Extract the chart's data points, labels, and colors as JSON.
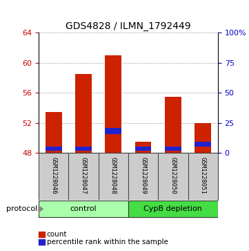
{
  "title": "GDS4828 / ILMN_1792449",
  "samples": [
    "GSM1228046",
    "GSM1228047",
    "GSM1228048",
    "GSM1228049",
    "GSM1228050",
    "GSM1228051"
  ],
  "red_tops": [
    53.5,
    58.5,
    61.0,
    49.5,
    55.5,
    52.0
  ],
  "blue_bottoms": [
    48.3,
    48.3,
    50.5,
    48.3,
    48.3,
    48.9
  ],
  "blue_tops": [
    48.9,
    48.9,
    51.3,
    48.9,
    48.9,
    49.5
  ],
  "base": 48.0,
  "ylim_left": [
    48,
    64
  ],
  "ylim_right": [
    0,
    100
  ],
  "yticks_left": [
    48,
    52,
    56,
    60,
    64
  ],
  "yticks_right": [
    0,
    25,
    50,
    75,
    100
  ],
  "ytick_labels_right": [
    "0",
    "25",
    "50",
    "75",
    "100%"
  ],
  "groups": [
    {
      "label": "control",
      "span": [
        0,
        3
      ],
      "color": "#aaffaa"
    },
    {
      "label": "CypB depletion",
      "span": [
        3,
        6
      ],
      "color": "#44dd44"
    }
  ],
  "protocol_label": "protocol",
  "bar_width": 0.55,
  "red_color": "#cc2200",
  "blue_color": "#2222cc",
  "left_tick_color": "#cc0000",
  "right_tick_color": "#0000cc",
  "background_plot": "#ffffff",
  "background_sample": "#cccccc",
  "legend_items": [
    "count",
    "percentile rank within the sample"
  ]
}
